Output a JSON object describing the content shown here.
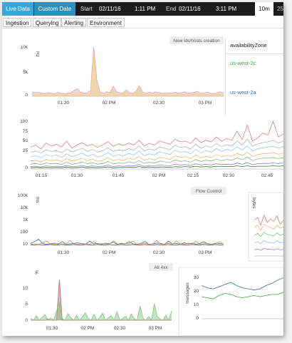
{
  "toolbar": {
    "live_label": "Live Data",
    "custom_label": "Custom Date",
    "start_label": "Start",
    "start_date": "02/11/16",
    "start_time": "1:11 PM",
    "end_label": "End",
    "end_date": "02/11/16",
    "end_time": "3:11 PM",
    "range_selected": "10m",
    "range_next": "25"
  },
  "tabs": [
    {
      "label": "Ingestion"
    },
    {
      "label": "Querying"
    },
    {
      "label": "Alerting"
    },
    {
      "label": "Environment"
    }
  ],
  "legend": {
    "header": "availabilityZone",
    "items": [
      {
        "label": "us-west-2c",
        "color": "#3aa64a"
      },
      {
        "label": "us-west-2a",
        "color": "#2f6fa8"
      }
    ]
  },
  "chart_data": [
    {
      "type": "area",
      "title": "New ids/hosts creation",
      "ylabel": "Hz",
      "yticks": [
        "10k",
        "5k",
        "0"
      ],
      "xticks": [
        "01:30",
        "02 PM",
        "02:30",
        "03 PM"
      ],
      "ylim": [
        0,
        10000
      ],
      "series": [
        {
          "color": "#e8a3a3",
          "values": [
            900,
            700,
            800,
            600,
            500,
            700,
            600,
            500,
            800,
            600,
            500,
            600,
            700,
            1200,
            1500,
            800,
            600,
            700,
            1200,
            9800,
            3000,
            800,
            600,
            900,
            700,
            2000,
            900,
            700,
            600,
            1300,
            700,
            600,
            1000,
            2100,
            900,
            600,
            800,
            600,
            900,
            700,
            600,
            500,
            700,
            600,
            800,
            600,
            700,
            900,
            600,
            700,
            800,
            1000,
            600,
            700,
            800,
            600,
            500,
            700,
            900,
            600
          ]
        },
        {
          "color": "#e8d58a",
          "values": [
            300,
            250,
            200,
            300,
            250,
            200,
            300,
            250,
            200,
            300,
            250,
            200,
            300,
            400,
            500,
            300,
            250,
            300,
            500,
            8500,
            2000,
            300,
            250,
            400,
            300,
            1500,
            400,
            300,
            250,
            900,
            300,
            250,
            600,
            1700,
            400,
            250,
            300,
            250,
            300,
            250,
            200,
            250,
            300,
            250,
            300,
            250,
            300,
            400,
            250,
            300,
            350,
            500,
            250,
            300,
            350,
            250,
            200,
            300,
            400,
            250
          ]
        }
      ]
    },
    {
      "type": "line",
      "title": "",
      "yticks": [
        "100",
        "75",
        "50",
        "25",
        "0"
      ],
      "xticks": [
        "01:15",
        "01:30",
        "01:45",
        "02 PM",
        "02:15",
        "02:30",
        "02:45"
      ],
      "ylim": [
        0,
        125
      ],
      "series": [
        {
          "color": "#e27d7d",
          "values": [
            55,
            60,
            50,
            65,
            58,
            62,
            55,
            70,
            52,
            60,
            66,
            58,
            62,
            54,
            61,
            68,
            57,
            63,
            59,
            65,
            60,
            72,
            58,
            64,
            60,
            70,
            66,
            62,
            75,
            68,
            70,
            64,
            78,
            66,
            72,
            68,
            80,
            70,
            76,
            72,
            95,
            74,
            110,
            70,
            78,
            90,
            85,
            120,
            80,
            88
          ]
        },
        {
          "color": "#b5b5b5",
          "values": [
            42,
            45,
            40,
            48,
            44,
            46,
            41,
            50,
            43,
            47,
            52,
            44,
            49,
            42,
            46,
            53,
            44,
            48,
            45,
            51,
            47,
            58,
            45,
            50,
            47,
            55,
            52,
            48,
            60,
            54,
            56,
            50,
            62,
            52,
            58,
            54,
            64,
            56,
            61,
            58,
            70,
            60,
            75,
            57,
            63,
            66,
            68,
            72,
            65,
            70
          ]
        },
        {
          "color": "#9ec3e6",
          "values": [
            30,
            34,
            28,
            36,
            32,
            35,
            29,
            38,
            31,
            35,
            40,
            32,
            37,
            30,
            34,
            41,
            32,
            36,
            33,
            39,
            35,
            45,
            33,
            38,
            35,
            43,
            40,
            36,
            47,
            42,
            44,
            38,
            49,
            40,
            46,
            42,
            51,
            44,
            49,
            46,
            55,
            48,
            58,
            45,
            51,
            53,
            55,
            57,
            52,
            56
          ]
        },
        {
          "color": "#f0b27a",
          "values": [
            20,
            22,
            18,
            24,
            21,
            23,
            19,
            26,
            20,
            23,
            27,
            21,
            25,
            19,
            22,
            28,
            21,
            24,
            22,
            27,
            23,
            31,
            22,
            26,
            23,
            29,
            27,
            24,
            33,
            29,
            31,
            26,
            35,
            28,
            32,
            29,
            36,
            31,
            34,
            32,
            39,
            34,
            42,
            31,
            36,
            38,
            39,
            41,
            37,
            40
          ]
        },
        {
          "color": "#7fbf7f",
          "values": [
            12,
            14,
            11,
            15,
            13,
            14,
            12,
            17,
            12,
            14,
            18,
            13,
            16,
            12,
            14,
            19,
            13,
            15,
            14,
            18,
            15,
            21,
            14,
            17,
            15,
            20,
            18,
            16,
            23,
            19,
            21,
            17,
            24,
            19,
            22,
            20,
            25,
            21,
            24,
            22,
            28,
            23,
            30,
            21,
            25,
            27,
            27,
            29,
            26,
            28
          ]
        },
        {
          "color": "#9a7fc9",
          "values": [
            6,
            7,
            5,
            8,
            6,
            7,
            6,
            9,
            6,
            7,
            9,
            6,
            8,
            6,
            7,
            10,
            6,
            8,
            7,
            9,
            8,
            11,
            7,
            9,
            8,
            10,
            9,
            8,
            12,
            10,
            11,
            9,
            13,
            10,
            12,
            10,
            13,
            11,
            12,
            11,
            15,
            12,
            16,
            11,
            13,
            14,
            14,
            15,
            14,
            15
          ]
        },
        {
          "color": "#2e7d32",
          "values": [
            3,
            4,
            3,
            4,
            3,
            4,
            3,
            5,
            3,
            4,
            5,
            3,
            4,
            3,
            4,
            5,
            3,
            4,
            4,
            5,
            4,
            6,
            4,
            5,
            4,
            5,
            5,
            4,
            6,
            5,
            6,
            5,
            7,
            5,
            6,
            5,
            7,
            6,
            6,
            6,
            8,
            6,
            8,
            6,
            7,
            7,
            7,
            8,
            7,
            8
          ]
        }
      ]
    },
    {
      "type": "line",
      "title": "Flow Control",
      "ylabel": "ms",
      "yticks": [
        "100k",
        "10k",
        "1k",
        "100",
        "10"
      ],
      "xticks": [
        "01:30",
        "02 PM",
        "02:30",
        "03 PM"
      ],
      "ylim": [
        10,
        100000
      ],
      "series": [
        {
          "color": "#2f6fa8",
          "values": [
            14,
            20,
            30,
            14,
            12,
            13,
            15,
            12,
            20,
            12,
            13,
            14,
            16,
            13,
            12,
            22,
            13,
            14,
            12,
            15,
            13,
            18,
            12,
            14,
            13,
            19,
            13,
            12,
            14,
            20,
            12,
            13,
            15,
            14,
            12,
            21,
            13,
            14,
            12,
            16,
            13,
            15,
            12,
            14,
            19,
            13,
            12,
            15,
            14,
            13
          ]
        },
        {
          "color": "#ef8a3a",
          "values": [
            12,
            13,
            12,
            15,
            22,
            13,
            12,
            14,
            13,
            12,
            25,
            13,
            12,
            14,
            13,
            12,
            20,
            12,
            14,
            13,
            12,
            23,
            13,
            12,
            14,
            13,
            22,
            12,
            13,
            14,
            12,
            13,
            24,
            12,
            13,
            14,
            12,
            22,
            13,
            12,
            14,
            13,
            21,
            12,
            13,
            14,
            12,
            13,
            20,
            12
          ]
        },
        {
          "color": "#7a7a7a",
          "values": [
            11,
            11,
            12,
            11,
            11,
            12,
            11,
            11,
            12,
            11,
            11,
            12,
            11,
            11,
            12,
            11,
            11,
            12,
            11,
            11,
            12,
            11,
            11,
            12,
            11,
            11,
            12,
            11,
            11,
            12,
            11,
            11,
            12,
            11,
            11,
            12,
            11,
            11,
            12,
            11,
            11,
            12,
            11,
            11,
            12,
            11,
            11,
            12,
            11,
            11
          ]
        }
      ]
    },
    {
      "type": "area",
      "title": "All 4xx",
      "ylabel": "%",
      "yticks": [
        "10",
        "5",
        "0"
      ],
      "xticks": [
        "01:30",
        "02 PM",
        "02:30",
        "03 PM"
      ],
      "ylim": [
        0,
        12
      ],
      "series": [
        {
          "color": "#b56a6a",
          "values": [
            0,
            0,
            0,
            0,
            0,
            0,
            0.3,
            0,
            0,
            0,
            11,
            0,
            0,
            0,
            0,
            0,
            0,
            0,
            0,
            0,
            0,
            0,
            0,
            0,
            0,
            0,
            0,
            0,
            0,
            0,
            0,
            0,
            0,
            0,
            0,
            0,
            0,
            0,
            0,
            0,
            0,
            0,
            0,
            0,
            0,
            0,
            0,
            0,
            0,
            0
          ]
        },
        {
          "color": "#7fc27f",
          "values": [
            0.5,
            0,
            1.2,
            0,
            0.8,
            1.5,
            0,
            0.6,
            0,
            2.5,
            5,
            0.4,
            0,
            1.8,
            0.6,
            0,
            1.3,
            0,
            0.9,
            2,
            0.5,
            0,
            1.6,
            0,
            0.8,
            1.9,
            0,
            0.7,
            1.2,
            0,
            2.3,
            0,
            0.5,
            1.1,
            0,
            1.7,
            0.4,
            0,
            3.8,
            0.6,
            0,
            1,
            0,
            4.5,
            1,
            0.3,
            0,
            1.4,
            0,
            2.5
          ]
        }
      ]
    },
    {
      "type": "line",
      "title": "",
      "ylabel": "messages",
      "yticks": [
        "30",
        "20",
        "10",
        "0"
      ],
      "xticks": [],
      "ylim": [
        0,
        40
      ],
      "series": [
        {
          "color": "#2f6fa8",
          "values": [
            30,
            28,
            27,
            29,
            31,
            33,
            30,
            28,
            27,
            26,
            27,
            30,
            32,
            35,
            37
          ]
        },
        {
          "color": "#3aa64a",
          "values": [
            20,
            19,
            18,
            21,
            23,
            22,
            20,
            19,
            20,
            21,
            20,
            21,
            22,
            22,
            24
          ]
        }
      ]
    },
    {
      "type": "line",
      "title": "",
      "ylabel": "bytes",
      "yticks": [],
      "xticks": [],
      "ylim": [
        0,
        100
      ],
      "series": [
        {
          "color": "#e27d7d",
          "values": [
            70,
            75,
            60,
            80,
            65,
            72,
            68,
            78,
            62,
            70
          ]
        },
        {
          "color": "#f0b27a",
          "values": [
            55,
            60,
            50,
            62,
            58,
            56,
            52,
            60,
            54,
            57
          ]
        },
        {
          "color": "#7fbf7f",
          "values": [
            40,
            44,
            38,
            46,
            42,
            41,
            39,
            45,
            40,
            43
          ]
        },
        {
          "color": "#9ec3e6",
          "values": [
            25,
            28,
            24,
            30,
            27,
            26,
            25,
            29,
            26,
            27
          ]
        },
        {
          "color": "#9a7fc9",
          "values": [
            12,
            14,
            11,
            15,
            13,
            13,
            12,
            14,
            12,
            13
          ]
        }
      ]
    }
  ]
}
